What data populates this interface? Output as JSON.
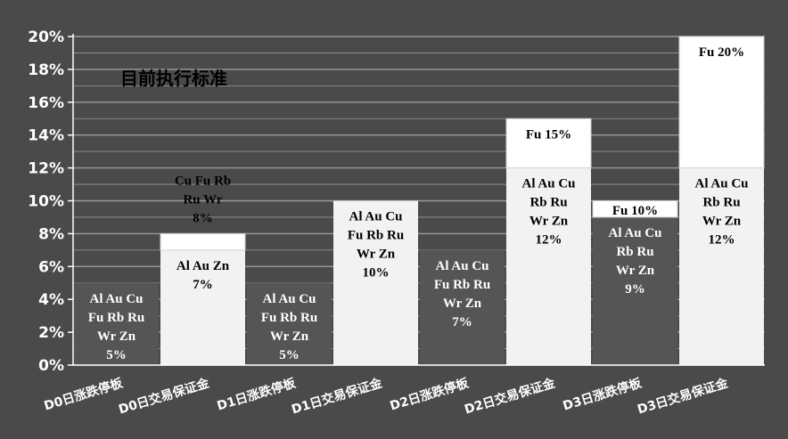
{
  "chart_data": {
    "type": "bar",
    "stacked": true,
    "title": "目前执行标准",
    "xlabel": "",
    "ylabel": "",
    "ylim": [
      0,
      20
    ],
    "y_ticks": [
      "0%",
      "2%",
      "4%",
      "6%",
      "8%",
      "10%",
      "12%",
      "14%",
      "16%",
      "18%",
      "20%"
    ],
    "grid": true,
    "categories": [
      "D0日涨跌停板",
      "D0日交易保证金",
      "D1日涨跌停板",
      "D1日交易保证金",
      "D2日涨跌停板",
      "D2日交易保证金",
      "D3日涨跌停板",
      "D3日交易保证金"
    ],
    "bars": [
      {
        "segments": [
          {
            "value": 5,
            "lines": [
              "Al Au Cu",
              "Fu Rb Ru",
              "Wr Zn",
              "5%"
            ]
          }
        ]
      },
      {
        "segments": [
          {
            "value": 7,
            "lines": [
              "Al Au Zn",
              "7%"
            ]
          },
          {
            "value": 1,
            "lines": [
              "Cu Fu Rb",
              "Ru Wr",
              "8%"
            ]
          }
        ]
      },
      {
        "segments": [
          {
            "value": 5,
            "lines": [
              "Al Au Cu",
              "Fu Rb Ru",
              "Wr Zn",
              "5%"
            ]
          }
        ]
      },
      {
        "segments": [
          {
            "value": 10,
            "lines": [
              "Al Au Cu",
              "Fu Rb Ru",
              "Wr Zn",
              "10%"
            ]
          }
        ]
      },
      {
        "segments": [
          {
            "value": 7,
            "lines": [
              "Al Au Cu",
              "Fu Rb Ru",
              "Wr Zn",
              "7%"
            ]
          }
        ]
      },
      {
        "segments": [
          {
            "value": 12,
            "lines": [
              "Al Au Cu",
              "Rb Ru",
              "Wr Zn",
              "12%"
            ]
          },
          {
            "value": 3,
            "lines": [
              "Fu 15%"
            ]
          }
        ]
      },
      {
        "segments": [
          {
            "value": 9,
            "lines": [
              "Al Au Cu",
              "Rb Ru",
              "Wr Zn",
              "9%"
            ]
          },
          {
            "value": 1,
            "lines": [
              "Fu 10%"
            ]
          }
        ]
      },
      {
        "segments": [
          {
            "value": 12,
            "lines": [
              "Al Au Cu",
              "Rb Ru",
              "Wr Zn",
              "12%"
            ]
          },
          {
            "value": 8,
            "lines": [
              "Fu 20%"
            ]
          }
        ]
      }
    ]
  },
  "colors": {
    "background": "#4a4a4a",
    "limit_bar": "#555555",
    "margin_bar": "#f2f2f2",
    "top_segment": "#ffffff",
    "grid": "#9a9a9a",
    "axis_text": "#ffffff",
    "dark_label": "#ffffff",
    "light_label": "#000000"
  }
}
